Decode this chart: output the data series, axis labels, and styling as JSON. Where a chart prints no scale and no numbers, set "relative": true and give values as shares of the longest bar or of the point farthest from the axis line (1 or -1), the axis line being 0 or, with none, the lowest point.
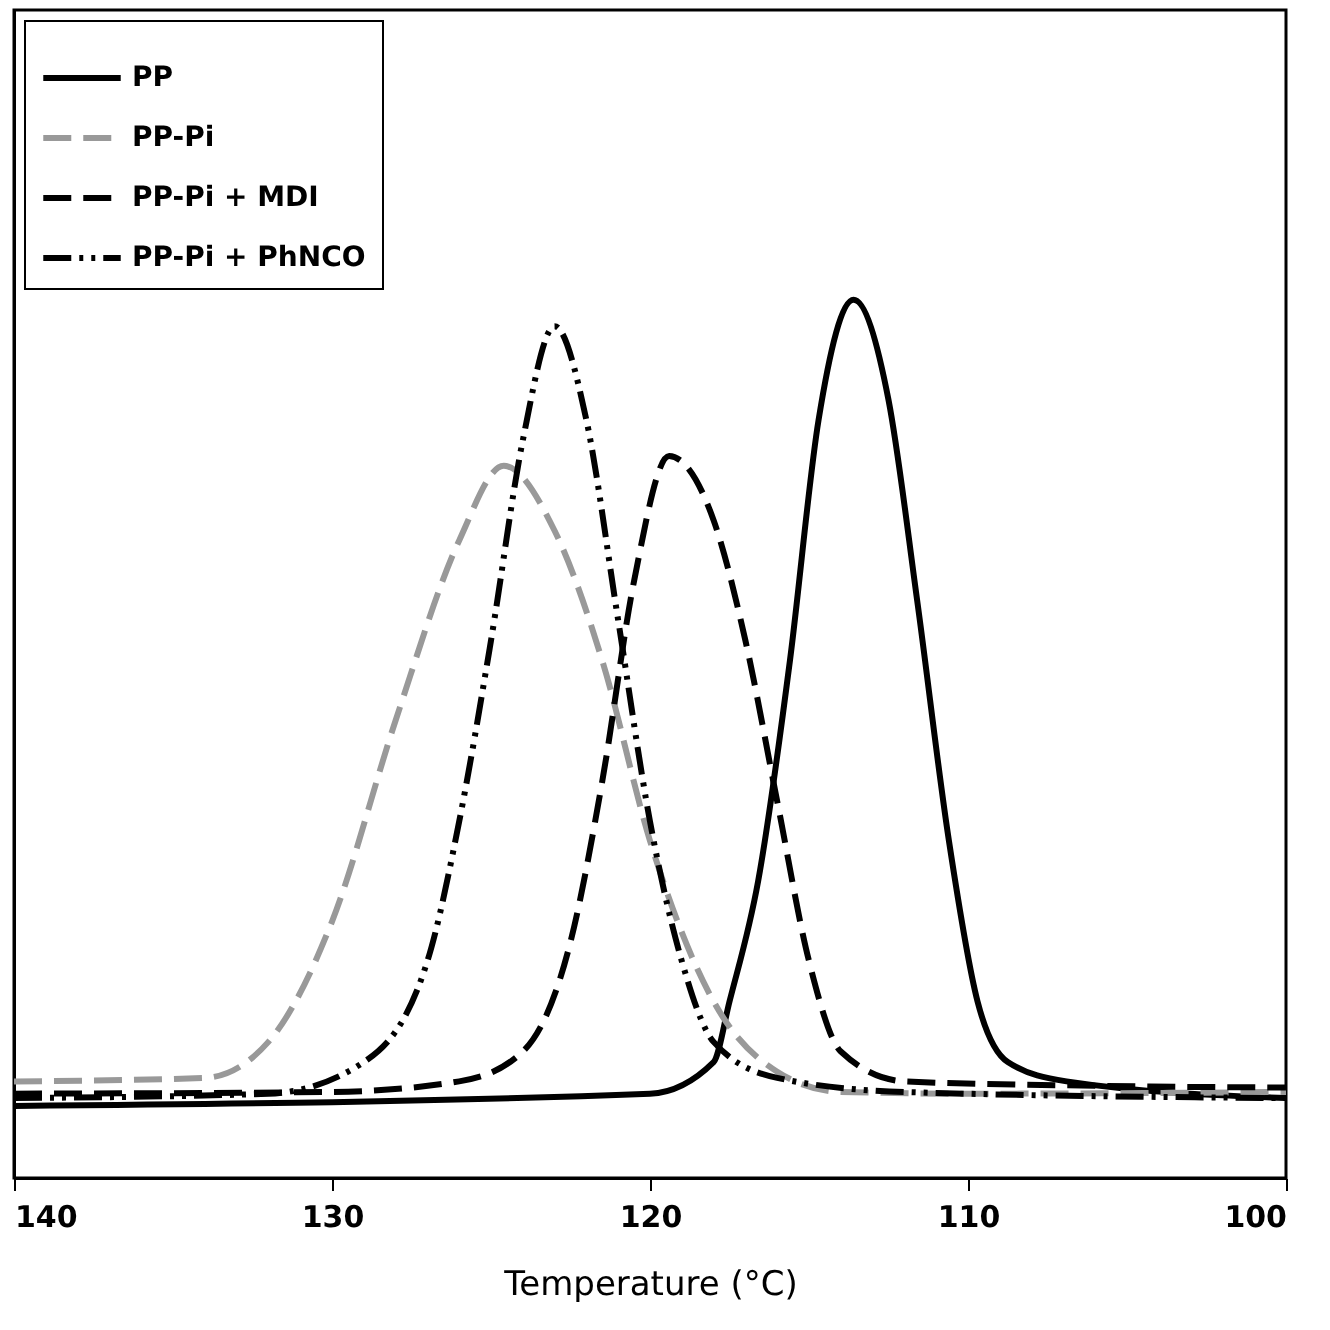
{
  "chart_data": {
    "type": "line",
    "xlabel": "Temperature (°C)",
    "relative": true,
    "xlim": [
      140,
      100
    ],
    "xticks": [
      140,
      130,
      120,
      110,
      100
    ],
    "grid": false,
    "legend": "top left",
    "marker": "none",
    "tick_labels": "x",
    "series": [
      {
        "name": "PP",
        "color": "#000000",
        "line_style": "solid",
        "x": [
          140,
          120,
          118,
          117.5,
          116.6,
          115.6,
          114.7,
          113.6,
          112.5,
          111.6,
          110.6,
          109.7,
          108.75,
          106.9,
          100
        ],
        "values": [
          0.082,
          0.096,
          0.132,
          0.201,
          0.338,
          0.589,
          0.863,
          1.0,
          0.886,
          0.658,
          0.384,
          0.201,
          0.132,
          0.11,
          0.091
        ]
      },
      {
        "name": "PP-Pi",
        "color": "#999999",
        "line_style": "dashed",
        "x": [
          140,
          134,
          132,
          130,
          128,
          126,
          124.6,
          123,
          121.5,
          120,
          118,
          116,
          114,
          110,
          100
        ],
        "values": [
          0.11,
          0.114,
          0.155,
          0.292,
          0.521,
          0.726,
          0.811,
          0.737,
          0.589,
          0.384,
          0.201,
          0.121,
          0.098,
          0.096,
          0.098
        ]
      },
      {
        "name": "PP-Pi + MDI",
        "color": "#000000",
        "line_style": "dashed",
        "x": [
          140,
          130,
          126,
          124,
          122.5,
          121.5,
          120.5,
          119.4,
          118,
          117,
          116,
          115,
          114,
          112,
          106,
          100
        ],
        "values": [
          0.096,
          0.098,
          0.11,
          0.144,
          0.269,
          0.452,
          0.68,
          0.822,
          0.749,
          0.612,
          0.429,
          0.247,
          0.144,
          0.11,
          0.105,
          0.103
        ]
      },
      {
        "name": "PP-Pi + PhNCO",
        "color": "#000000",
        "line_style": "dashdot",
        "x": [
          140,
          132,
          129,
          127,
          126,
          125,
          124,
          123,
          122,
          121,
          120,
          119,
          118,
          116,
          112,
          100
        ],
        "values": [
          0.091,
          0.096,
          0.132,
          0.247,
          0.406,
          0.612,
          0.84,
          0.97,
          0.863,
          0.635,
          0.406,
          0.247,
          0.155,
          0.114,
          0.098,
          0.091
        ]
      }
    ]
  }
}
